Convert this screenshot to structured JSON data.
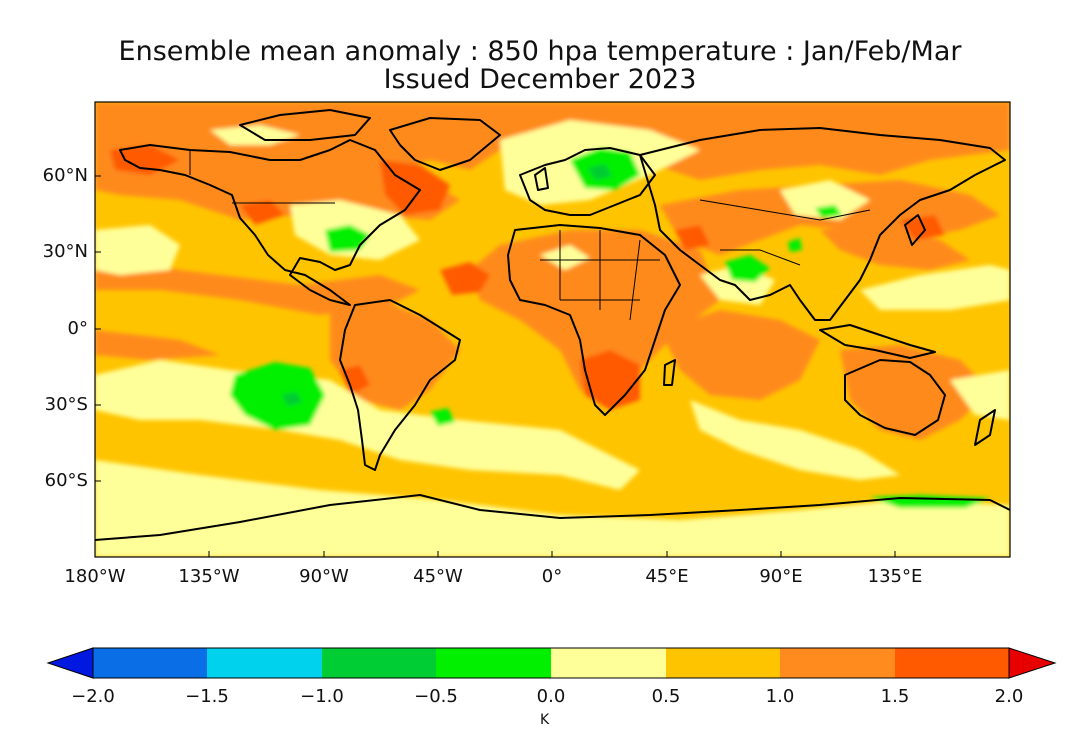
{
  "title": "Ensemble mean anomaly : 850 hpa temperature : Jan/Feb/Mar",
  "subtitle": "Issued December 2023",
  "lat_ticks": [
    "60°N",
    "30°N",
    "0°",
    "30°S",
    "60°S"
  ],
  "lon_ticks": [
    "180°W",
    "135°W",
    "90°W",
    "45°W",
    "0°",
    "45°E",
    "90°E",
    "135°E"
  ],
  "colorbar": {
    "tick_labels": [
      "−2.0",
      "−1.5",
      "−1.0",
      "−0.5",
      "0.0",
      "0.5",
      "1.0",
      "1.5",
      "2.0"
    ],
    "bins": [
      {
        "from": -2.0,
        "to": -1.5,
        "color": "#0a6ee6"
      },
      {
        "from": -1.5,
        "to": -1.0,
        "color": "#00d2ee"
      },
      {
        "from": -1.0,
        "to": -0.5,
        "color": "#00cc33"
      },
      {
        "from": -0.5,
        "to": 0.0,
        "color": "#00f000"
      },
      {
        "from": 0.0,
        "to": 0.5,
        "color": "#ffff99"
      },
      {
        "from": 0.5,
        "to": 1.0,
        "color": "#ffc400"
      },
      {
        "from": 1.0,
        "to": 1.5,
        "color": "#ff8a1e"
      },
      {
        "from": 1.5,
        "to": 2.0,
        "color": "#ff5a00"
      }
    ],
    "under_color": "#0018e0",
    "over_color": "#e60000",
    "unit": "K"
  },
  "colors": {
    "anomaly_0_0p5": "#ffff99",
    "anomaly_0p5_1": "#ffc400",
    "anomaly_1_1p5": "#ff8a1e",
    "anomaly_1p5_2": "#ff5a00",
    "anomaly_over_2": "#e60000",
    "anomaly_m0p5_0": "#00f000",
    "anomaly_m1_m0p5": "#00cc33",
    "coastline": "#000000"
  }
}
